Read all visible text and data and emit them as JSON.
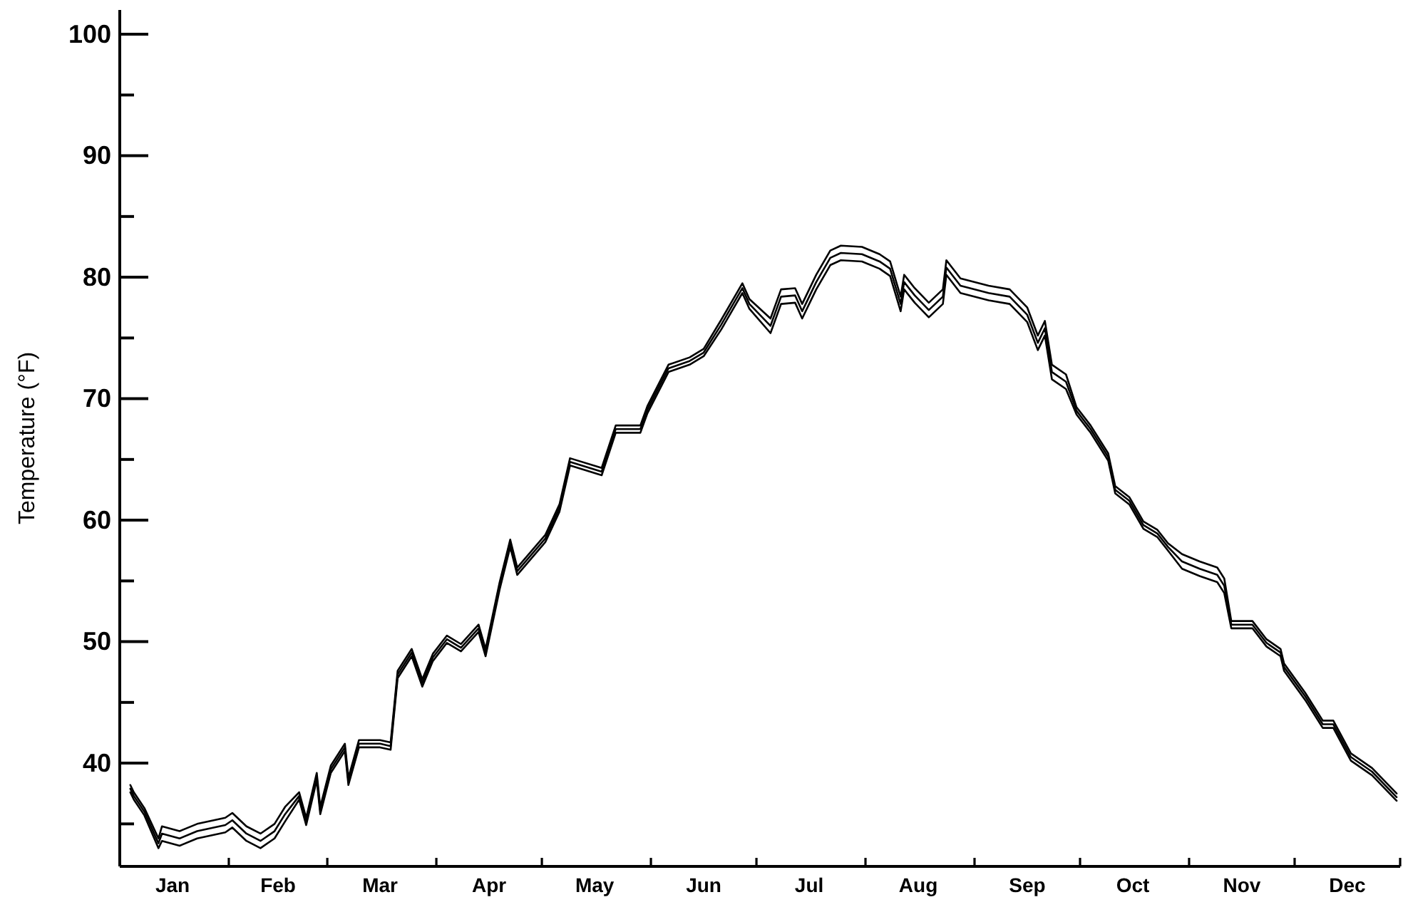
{
  "chart_data": {
    "type": "line",
    "ylabel": "Temperature (°F)",
    "line_style": "solid",
    "xlim": [
      "--01-01",
      "--12-31"
    ],
    "ylim": [
      31.5,
      102
    ],
    "xticks": [
      {
        "value": "--01-16",
        "label": "Jan"
      },
      {
        "value": "--02-01",
        "label": null
      },
      {
        "value": "--02-15",
        "label": "Feb"
      },
      {
        "value": "--03-01",
        "label": null
      },
      {
        "value": "--03-16",
        "label": "Mar"
      },
      {
        "value": "--04-01",
        "label": null
      },
      {
        "value": "--04-16",
        "label": "Apr"
      },
      {
        "value": "--05-01",
        "label": null
      },
      {
        "value": "--05-16",
        "label": "May"
      },
      {
        "value": "--06-01",
        "label": null
      },
      {
        "value": "--06-16",
        "label": "Jun"
      },
      {
        "value": "--07-01",
        "label": null
      },
      {
        "value": "--07-16",
        "label": "Jul"
      },
      {
        "value": "--08-01",
        "label": null
      },
      {
        "value": "--08-16",
        "label": "Aug"
      },
      {
        "value": "--09-01",
        "label": null
      },
      {
        "value": "--09-16",
        "label": "Sep"
      },
      {
        "value": "--10-01",
        "label": null
      },
      {
        "value": "--10-16",
        "label": "Oct"
      },
      {
        "value": "--11-01",
        "label": null
      },
      {
        "value": "--11-16",
        "label": "Nov"
      },
      {
        "value": "--12-01",
        "label": null
      },
      {
        "value": "--12-16",
        "label": "Dec"
      },
      {
        "value": "--12-31",
        "label": null
      }
    ],
    "yticks": [
      {
        "value": 35,
        "label": null
      },
      40,
      {
        "value": 45,
        "label": null
      },
      50,
      {
        "value": 55,
        "label": null
      },
      60,
      {
        "value": 65,
        "label": null
      },
      70,
      {
        "value": 75,
        "label": null
      },
      80,
      {
        "value": 85,
        "label": null
      },
      90,
      {
        "value": 95,
        "label": null
      },
      100
    ],
    "x": [
      "--01-04",
      "--01-05",
      "--01-08",
      "--01-12",
      "--01-13",
      "--01-18",
      "--01-23",
      "--01-31",
      "--02-02",
      "--02-06",
      "--02-10",
      "--02-14",
      "--02-17",
      "--02-21",
      "--02-23",
      "--02-26",
      "--02-27",
      "--03-02",
      "--03-06",
      "--03-07",
      "--03-10",
      "--03-16",
      "--03-19",
      "--03-21",
      "--03-25",
      "--03-28",
      "--03-31",
      "--04-04",
      "--04-08",
      "--04-13",
      "--04-15",
      "--04-19",
      "--04-22",
      "--04-24",
      "--05-02",
      "--05-06",
      "--05-09",
      "--05-18",
      "--05-22",
      "--05-29",
      "--05-31",
      "--06-06",
      "--06-12",
      "--06-16",
      "--06-21",
      "--06-27",
      "--06-29",
      "--07-05",
      "--07-08",
      "--07-12",
      "--07-14",
      "--07-18",
      "--07-22",
      "--07-25",
      "--07-31",
      "--08-05",
      "--08-08",
      "--08-11",
      "--08-12",
      "--08-15",
      "--08-19",
      "--08-23",
      "--08-24",
      "--08-28",
      "--09-05",
      "--09-11",
      "--09-16",
      "--09-19",
      "--09-21",
      "--09-23",
      "--09-27",
      "--09-30",
      "--10-04",
      "--10-09",
      "--10-11",
      "--10-15",
      "--10-19",
      "--10-23",
      "--10-26",
      "--10-30",
      "--11-04",
      "--11-09",
      "--11-11",
      "--11-13",
      "--11-19",
      "--11-23",
      "--11-27",
      "--11-28",
      "--12-04",
      "--12-09",
      "--12-12",
      "--12-17",
      "--12-23",
      "--12-30"
    ],
    "series": [
      {
        "color": "#000000",
        "values": [
          38.2,
          37.6,
          36.3,
          33.8,
          34.8,
          34.4,
          35.0,
          35.5,
          35.9,
          34.8,
          34.2,
          35.0,
          36.4,
          37.6,
          35.5,
          39.2,
          36.4,
          39.8,
          41.6,
          38.8,
          41.9,
          41.9,
          41.7,
          47.6,
          49.4,
          46.9,
          49.0,
          50.5,
          49.8,
          51.4,
          49.4,
          54.9,
          58.4,
          56.1,
          58.8,
          61.3,
          65.1,
          64.3,
          67.8,
          67.8,
          69.4,
          72.8,
          73.4,
          74.1,
          76.5,
          79.5,
          78.2,
          76.6,
          79.0,
          79.1,
          77.8,
          80.2,
          82.2,
          82.6,
          82.5,
          81.9,
          81.3,
          78.4,
          80.2,
          79.1,
          77.9,
          79.0,
          81.4,
          79.9,
          79.3,
          79.0,
          77.5,
          75.2,
          76.4,
          72.8,
          72.0,
          69.3,
          67.8,
          65.5,
          62.8,
          61.9,
          59.9,
          59.2,
          58.1,
          57.2,
          56.6,
          56.1,
          55.2,
          51.7,
          51.7,
          50.2,
          49.4,
          48.2,
          45.8,
          43.5,
          43.5,
          40.8,
          39.6,
          37.5
        ]
      },
      {
        "color": "#000000",
        "values": [
          37.9,
          37.3,
          36.0,
          33.4,
          34.2,
          33.8,
          34.4,
          34.9,
          35.3,
          34.2,
          33.6,
          34.4,
          35.8,
          37.3,
          35.2,
          38.9,
          36.1,
          39.5,
          41.3,
          38.5,
          41.6,
          41.6,
          41.4,
          47.3,
          49.1,
          46.6,
          48.7,
          50.2,
          49.5,
          51.1,
          49.1,
          54.6,
          58.1,
          55.8,
          58.5,
          61.0,
          64.8,
          64.0,
          67.5,
          67.5,
          69.1,
          72.5,
          73.1,
          73.8,
          76.1,
          79.1,
          77.8,
          76.0,
          78.4,
          78.5,
          77.2,
          79.6,
          81.6,
          82.0,
          81.9,
          81.3,
          80.7,
          77.8,
          79.6,
          78.5,
          77.3,
          78.4,
          80.8,
          79.3,
          78.7,
          78.4,
          76.9,
          74.6,
          75.8,
          72.2,
          71.4,
          69.0,
          67.5,
          65.2,
          62.5,
          61.6,
          59.6,
          58.9,
          57.8,
          56.6,
          56.0,
          55.5,
          54.6,
          51.4,
          51.4,
          49.9,
          49.1,
          47.9,
          45.5,
          43.2,
          43.2,
          40.5,
          39.3,
          37.2
        ]
      },
      {
        "color": "#000000",
        "values": [
          37.6,
          37.0,
          35.7,
          33.0,
          33.6,
          33.2,
          33.8,
          34.3,
          34.7,
          33.6,
          33.0,
          33.8,
          35.2,
          37.0,
          34.9,
          38.6,
          35.8,
          39.2,
          41.0,
          38.2,
          41.3,
          41.3,
          41.1,
          47.0,
          48.8,
          46.3,
          48.4,
          49.9,
          49.2,
          50.8,
          48.8,
          54.3,
          57.8,
          55.5,
          58.2,
          60.7,
          64.5,
          63.7,
          67.2,
          67.2,
          68.8,
          72.2,
          72.8,
          73.5,
          75.7,
          78.7,
          77.4,
          75.4,
          77.8,
          77.9,
          76.6,
          79.0,
          81.0,
          81.4,
          81.3,
          80.7,
          80.1,
          77.2,
          79.0,
          77.9,
          76.7,
          77.8,
          80.2,
          78.7,
          78.1,
          77.8,
          76.3,
          74.0,
          75.2,
          71.6,
          70.8,
          68.7,
          67.2,
          64.9,
          62.2,
          61.3,
          59.3,
          58.6,
          57.5,
          56.0,
          55.4,
          54.9,
          54.0,
          51.1,
          51.1,
          49.6,
          48.8,
          47.6,
          45.2,
          42.9,
          42.9,
          40.2,
          39.0,
          36.9
        ]
      }
    ]
  }
}
